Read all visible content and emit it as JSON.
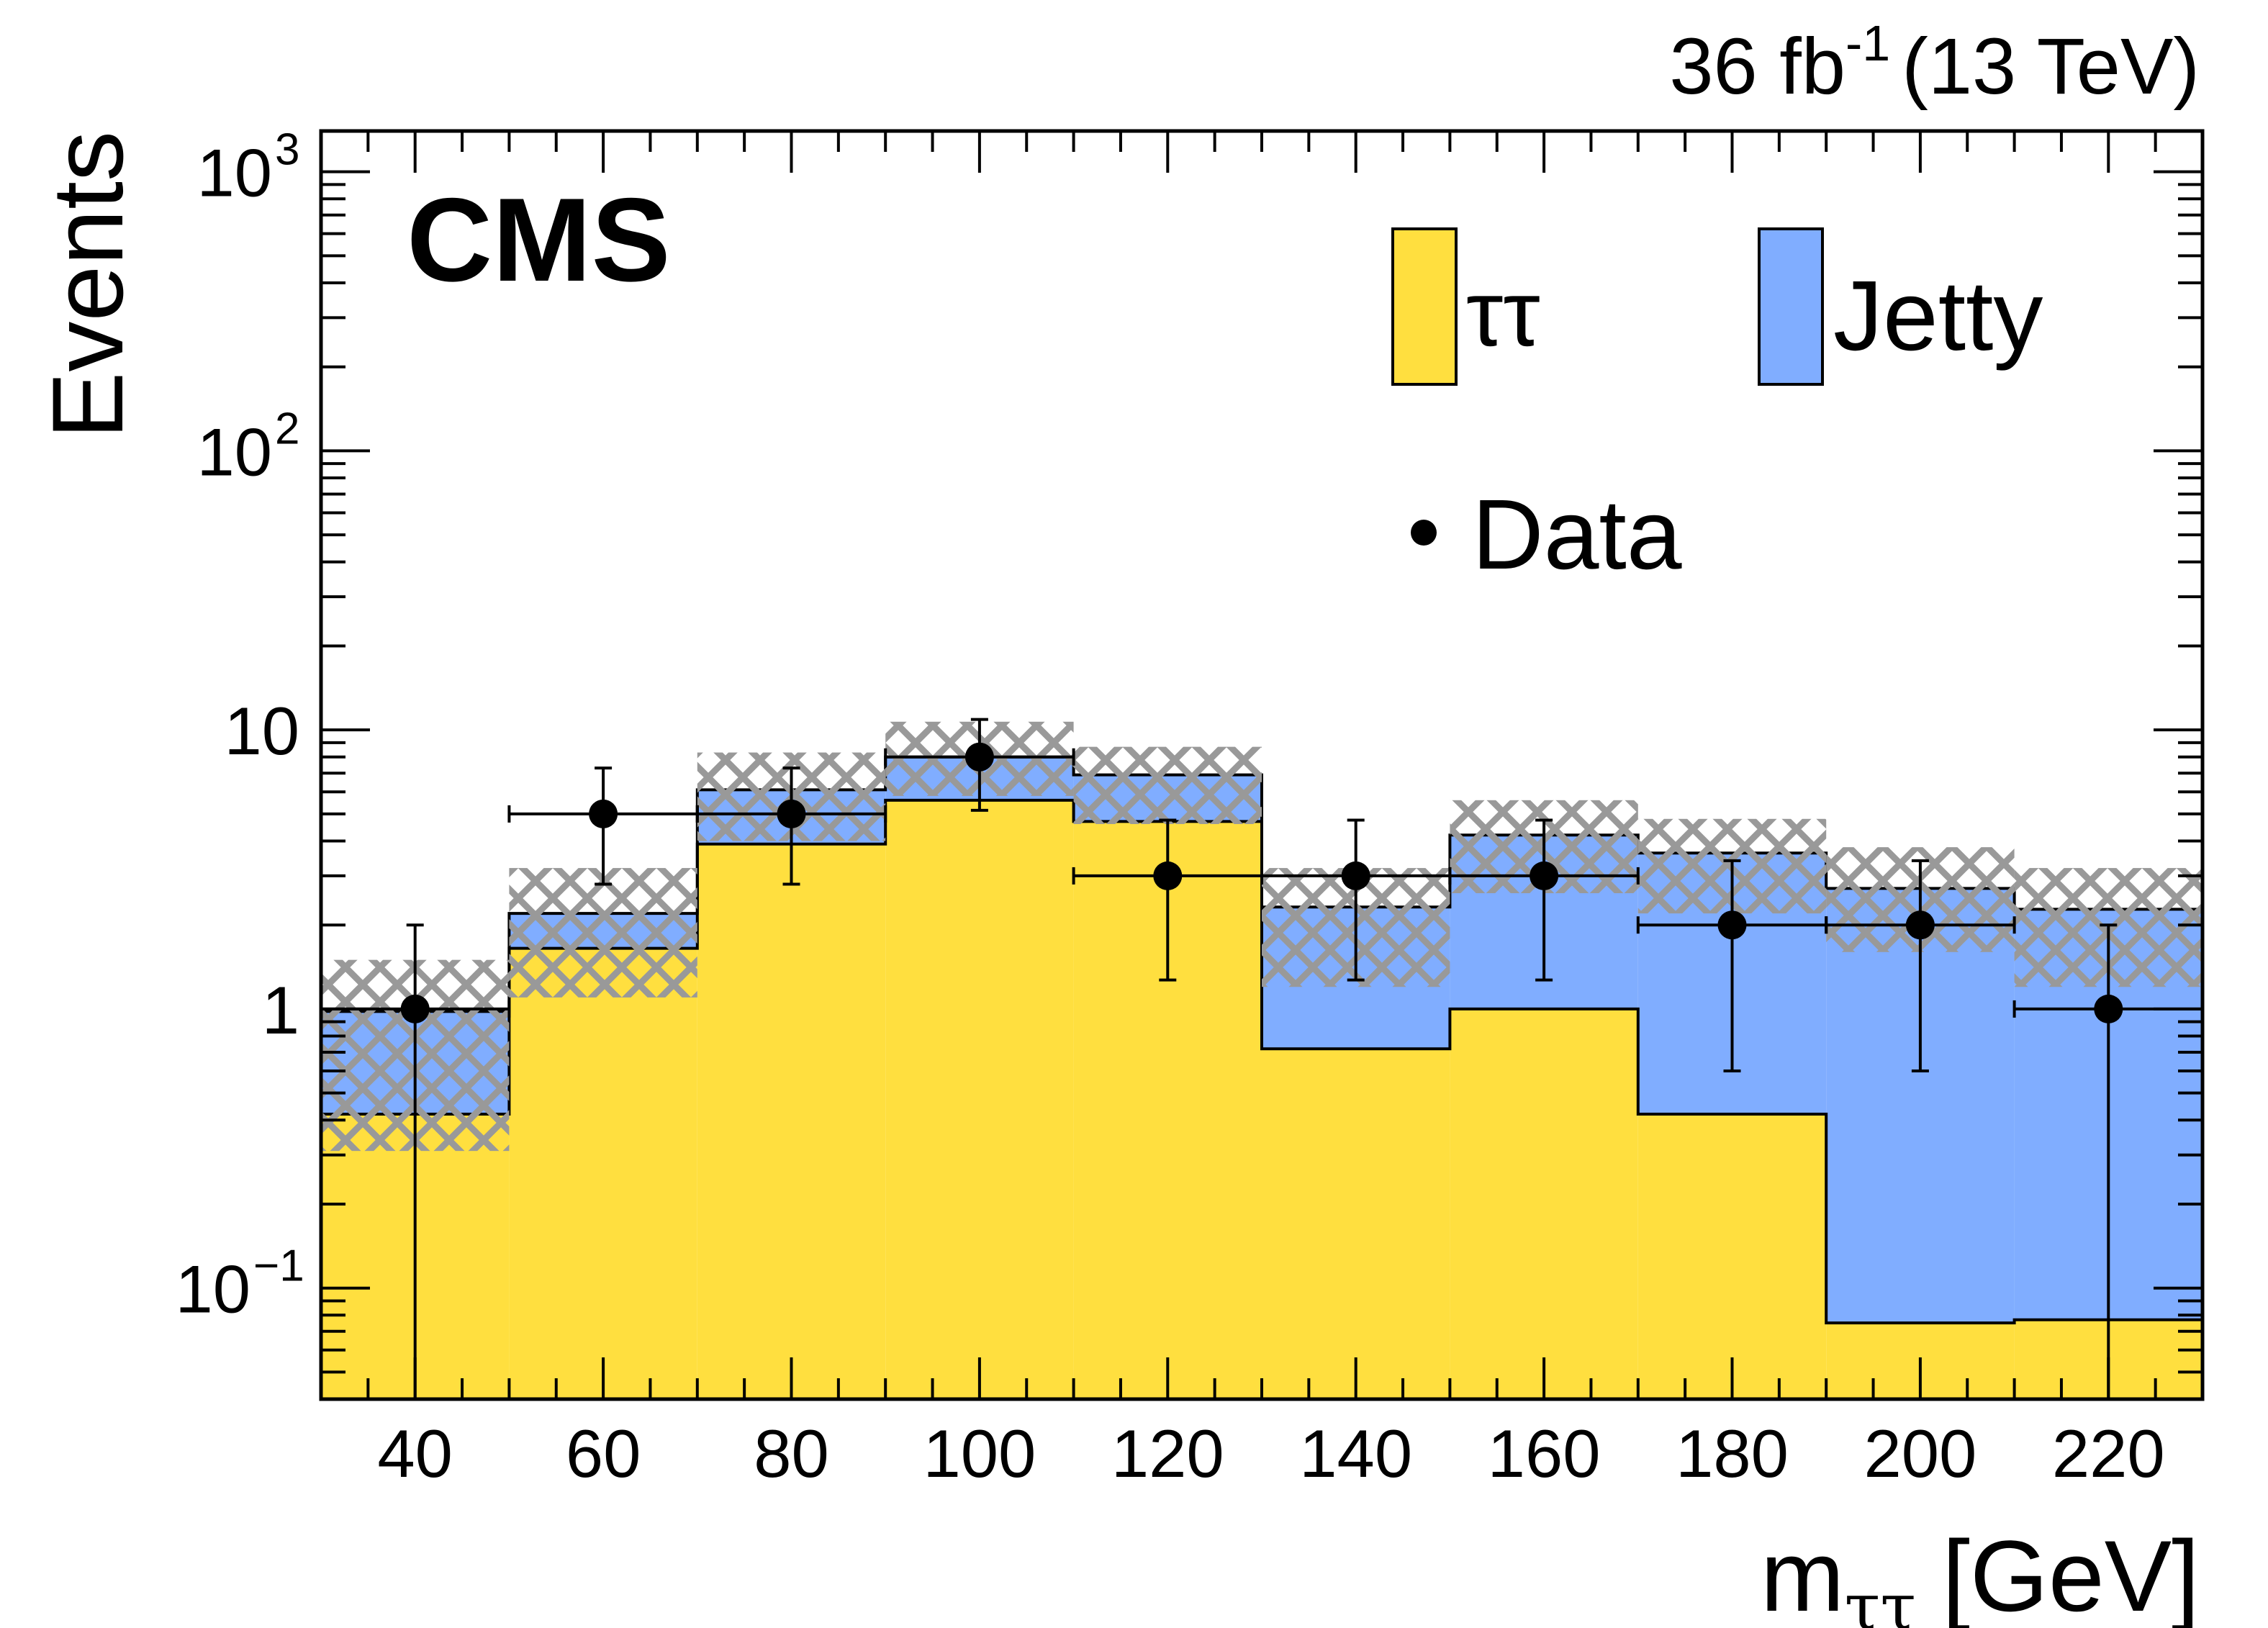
{
  "header": {
    "lumi_prefix": "36 fb",
    "lumi_sup": "-1",
    "energy": "(13 TeV)"
  },
  "experiment_label": "CMS",
  "legend": {
    "tautau": "ττ",
    "jetty": "Jetty",
    "data": "Data"
  },
  "colors": {
    "tautau": "#ffdf3f",
    "jetty": "#80adff",
    "uncertainty": "#999999",
    "data": "#000000"
  },
  "chart_data": {
    "type": "bar",
    "stacked": true,
    "y_scale": "log",
    "xlabel": "m",
    "xlabel_sub": "ττ",
    "xlabel_unit": "[GeV]",
    "ylabel": "Events",
    "xlim": [
      30,
      230
    ],
    "ylim": [
      0.04,
      1400
    ],
    "x_ticks": [
      "40",
      "60",
      "80",
      "100",
      "120",
      "140",
      "160",
      "180",
      "200",
      "220"
    ],
    "y_ticks": [
      {
        "base": "10",
        "exp": "3"
      },
      {
        "base": "10",
        "exp": "2"
      },
      {
        "base": "10",
        "exp": ""
      },
      {
        "base": "1",
        "exp": ""
      },
      {
        "base": "10",
        "exp": "−1"
      }
    ],
    "bin_edges": [
      30,
      50,
      70,
      90,
      110,
      130,
      150,
      170,
      190,
      210,
      230
    ],
    "series": [
      {
        "name": "ττ",
        "values": [
          0.42,
          1.65,
          3.9,
          5.6,
          4.7,
          0.72,
          1.0,
          0.42,
          0.075,
          0.077
        ]
      },
      {
        "name": "Jetty",
        "values": [
          0.56,
          0.55,
          2.2,
          2.4,
          2.2,
          1.6,
          3.2,
          3.2,
          2.63,
          2.2
        ]
      }
    ],
    "uncertainty": {
      "up": [
        1.5,
        3.2,
        8.3,
        10.7,
        8.7,
        3.2,
        5.6,
        4.8,
        3.8,
        3.2
      ],
      "down": [
        0.31,
        1.1,
        4.0,
        5.8,
        4.6,
        1.2,
        2.6,
        2.2,
        1.6,
        1.2
      ]
    },
    "data_points": {
      "name": "Data",
      "x": [
        40,
        60,
        80,
        100,
        120,
        140,
        160,
        180,
        200,
        220
      ],
      "y": [
        1,
        5,
        5,
        8,
        3,
        3,
        3,
        2,
        2,
        1
      ],
      "err_low": [
        0.96,
        2.2,
        2.2,
        2.85,
        1.73,
        1.73,
        1.73,
        1.4,
        1.4,
        0.96
      ],
      "err_high": [
        1.0,
        2.3,
        2.3,
        2.9,
        1.75,
        1.75,
        1.75,
        1.4,
        1.4,
        1.0
      ]
    }
  }
}
